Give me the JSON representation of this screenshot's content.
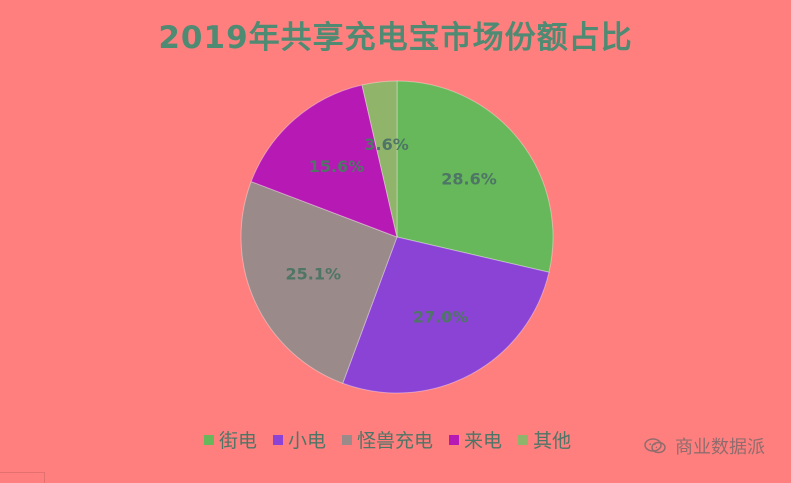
{
  "chart_data": {
    "type": "pie",
    "title": "2019年共享充电宝市场份额占比",
    "categories": [
      "街电",
      "小电",
      "怪兽充电",
      "来电",
      "其他"
    ],
    "values": [
      28.6,
      27.0,
      25.1,
      15.6,
      3.6
    ],
    "value_labels": [
      "28.6%",
      "27.0%",
      "25.1%",
      "15.6%",
      "3.6%"
    ],
    "colors": [
      "#66b85a",
      "#8b43d6",
      "#9a8a89",
      "#b71ab4",
      "#8fb46a"
    ],
    "legend_position": "bottom",
    "start_angle_deg": 0,
    "direction": "clockwise"
  },
  "watermark": {
    "text": "商业数据派",
    "icon": "wechat-icon"
  },
  "colors": {
    "background": "#ff7f7f",
    "title": "#4f8a73",
    "label": "#4e7566"
  }
}
